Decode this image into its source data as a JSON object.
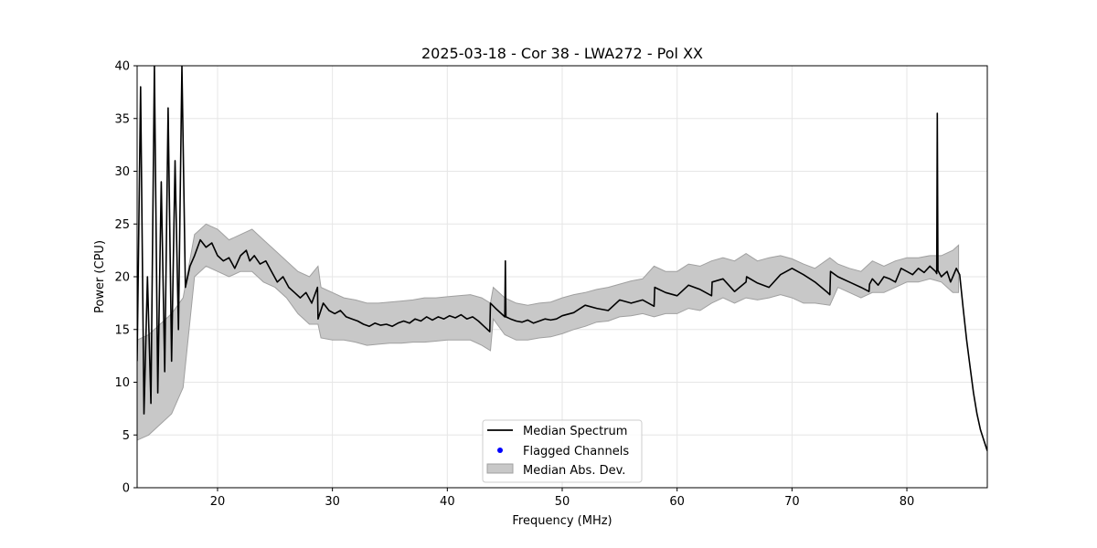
{
  "chart_data": {
    "type": "line",
    "title": "2025-03-18 - Cor 38 - LWA272 - Pol XX",
    "xlabel": "Frequency (MHz)",
    "ylabel": "Power (CPU)",
    "xlim": [
      13,
      87
    ],
    "ylim": [
      0,
      40
    ],
    "xticks": [
      20,
      30,
      40,
      50,
      60,
      70,
      80
    ],
    "yticks": [
      0,
      5,
      10,
      15,
      20,
      25,
      30,
      35,
      40
    ],
    "grid": true,
    "legend_position": "bottom-center",
    "legend": [
      "Median Spectrum",
      "Flagged Channels",
      "Median Abs. Dev."
    ],
    "colors": {
      "line": "#000000",
      "band": "#c8c8c8",
      "band_edge": "#a0a0a0",
      "flagged": "#0000ff",
      "grid": "#e6e6e6"
    },
    "series": [
      {
        "name": "Median Spectrum",
        "x": [
          13.0,
          13.3,
          13.6,
          13.9,
          14.2,
          14.5,
          14.8,
          15.1,
          15.4,
          15.7,
          16.0,
          16.3,
          16.6,
          16.9,
          17.2,
          17.6,
          18.0,
          18.5,
          19.0,
          19.5,
          20.0,
          20.5,
          21.0,
          21.5,
          22.0,
          22.5,
          22.8,
          23.2,
          23.7,
          24.2,
          24.7,
          25.2,
          25.7,
          26.2,
          26.7,
          27.2,
          27.7,
          28.2,
          28.7,
          28.75,
          29.2,
          29.7,
          30.2,
          30.7,
          31.2,
          31.7,
          32.2,
          32.7,
          33.2,
          33.7,
          34.2,
          34.7,
          35.2,
          35.7,
          36.2,
          36.7,
          37.2,
          37.7,
          38.2,
          38.7,
          39.2,
          39.7,
          40.2,
          40.7,
          41.2,
          41.7,
          42.2,
          42.7,
          43.2,
          43.7,
          43.75,
          44.2,
          44.7,
          45.0,
          45.05,
          45.1,
          45.5,
          46.0,
          46.5,
          47.0,
          47.5,
          48.0,
          48.5,
          49.0,
          49.5,
          50.0,
          51.0,
          52.0,
          53.0,
          54.0,
          55.0,
          56.0,
          57.0,
          58.0,
          58.05,
          59.0,
          60.0,
          61.0,
          62.0,
          63.0,
          63.05,
          64.0,
          65.0,
          66.0,
          66.05,
          67.0,
          68.0,
          69.0,
          70.0,
          71.0,
          72.0,
          73.0,
          73.3,
          73.35,
          74.0,
          75.0,
          76.0,
          76.7,
          76.75,
          77.0,
          77.5,
          78.0,
          78.5,
          79.0,
          79.5,
          80.0,
          80.5,
          81.0,
          81.5,
          82.0,
          82.5,
          82.6,
          82.65,
          82.7,
          83.0,
          83.5,
          83.8,
          84.0,
          84.3,
          84.6,
          84.9,
          85.2,
          85.5,
          85.8,
          86.1,
          86.4,
          86.7,
          87.0
        ],
        "y": [
          12.0,
          38.0,
          7.0,
          20.0,
          8.0,
          40.0,
          9.0,
          29.0,
          11.0,
          36.0,
          12.0,
          31.0,
          15.0,
          40.0,
          19.0,
          21.0,
          22.0,
          23.5,
          22.8,
          23.2,
          22.0,
          21.5,
          21.8,
          20.8,
          22.0,
          22.5,
          21.5,
          22.0,
          21.2,
          21.5,
          20.5,
          19.5,
          20.0,
          19.0,
          18.5,
          18.0,
          18.5,
          17.5,
          19.0,
          16.0,
          17.5,
          16.8,
          16.5,
          16.8,
          16.2,
          16.0,
          15.8,
          15.5,
          15.3,
          15.6,
          15.4,
          15.5,
          15.3,
          15.6,
          15.8,
          15.6,
          16.0,
          15.8,
          16.2,
          15.9,
          16.2,
          16.0,
          16.3,
          16.1,
          16.4,
          16.0,
          16.2,
          15.8,
          15.3,
          14.8,
          17.5,
          17.0,
          16.5,
          16.2,
          21.5,
          16.2,
          16.0,
          15.8,
          15.7,
          15.9,
          15.6,
          15.8,
          16.0,
          15.9,
          16.0,
          16.3,
          16.6,
          17.3,
          17.0,
          16.8,
          17.8,
          17.5,
          17.8,
          17.2,
          19.0,
          18.5,
          18.2,
          19.2,
          18.8,
          18.2,
          19.5,
          19.8,
          18.6,
          19.5,
          20.0,
          19.4,
          19.0,
          20.2,
          20.8,
          20.2,
          19.5,
          18.6,
          18.3,
          20.5,
          20.0,
          19.5,
          19.0,
          18.6,
          19.3,
          19.8,
          19.2,
          20.0,
          19.8,
          19.5,
          20.8,
          20.5,
          20.2,
          20.8,
          20.4,
          21.0,
          20.5,
          20.3,
          35.5,
          20.6,
          20.0,
          20.5,
          19.5,
          20.0,
          20.8,
          20.2,
          17.0,
          14.0,
          11.5,
          9.0,
          7.0,
          5.5,
          4.5,
          3.5
        ]
      },
      {
        "name": "Median Abs. Dev.",
        "x": [
          13.0,
          14.0,
          15.0,
          16.0,
          17.0,
          18.0,
          19.0,
          20.0,
          21.0,
          22.0,
          23.0,
          24.0,
          25.0,
          26.0,
          27.0,
          28.0,
          28.75,
          29.0,
          30.0,
          31.0,
          32.0,
          33.0,
          34.0,
          35.0,
          36.0,
          37.0,
          38.0,
          39.0,
          40.0,
          41.0,
          42.0,
          43.0,
          43.75,
          44.0,
          45.0,
          46.0,
          47.0,
          48.0,
          49.0,
          50.0,
          51.0,
          52.0,
          53.0,
          54.0,
          55.0,
          56.0,
          57.0,
          58.0,
          59.0,
          60.0,
          61.0,
          62.0,
          63.0,
          64.0,
          65.0,
          66.0,
          67.0,
          68.0,
          69.0,
          70.0,
          71.0,
          72.0,
          73.3,
          74.0,
          75.0,
          76.0,
          77.0,
          78.0,
          79.0,
          80.0,
          81.0,
          82.0,
          83.0,
          84.0,
          84.5
        ],
        "upper": [
          14.0,
          14.5,
          15.5,
          16.5,
          18.0,
          24.0,
          25.0,
          24.5,
          23.5,
          24.0,
          24.5,
          23.5,
          22.5,
          21.5,
          20.5,
          20.0,
          21.0,
          19.0,
          18.5,
          18.0,
          17.8,
          17.5,
          17.5,
          17.6,
          17.7,
          17.8,
          18.0,
          18.0,
          18.1,
          18.2,
          18.3,
          18.0,
          17.5,
          19.0,
          18.0,
          17.5,
          17.3,
          17.5,
          17.6,
          18.0,
          18.3,
          18.5,
          18.8,
          19.0,
          19.3,
          19.6,
          19.8,
          21.0,
          20.5,
          20.5,
          21.2,
          21.0,
          21.5,
          21.8,
          21.5,
          22.2,
          21.5,
          21.8,
          22.0,
          21.7,
          21.2,
          20.8,
          21.8,
          21.2,
          20.8,
          20.5,
          21.5,
          21.0,
          21.5,
          21.8,
          21.8,
          22.0,
          22.0,
          22.5,
          23.0
        ],
        "lower": [
          4.5,
          5.0,
          6.0,
          7.0,
          9.5,
          20.0,
          21.0,
          20.5,
          20.0,
          20.5,
          20.5,
          19.5,
          19.0,
          18.0,
          16.5,
          15.5,
          15.5,
          14.2,
          14.0,
          14.0,
          13.8,
          13.5,
          13.6,
          13.7,
          13.7,
          13.8,
          13.8,
          13.9,
          14.0,
          14.0,
          14.0,
          13.5,
          13.0,
          16.0,
          14.5,
          14.0,
          14.0,
          14.2,
          14.3,
          14.6,
          15.0,
          15.3,
          15.7,
          15.8,
          16.2,
          16.3,
          16.5,
          16.2,
          16.5,
          16.5,
          17.0,
          16.8,
          17.5,
          18.0,
          17.5,
          18.0,
          17.8,
          18.0,
          18.3,
          18.0,
          17.5,
          17.5,
          17.3,
          19.0,
          18.5,
          18.0,
          18.5,
          18.5,
          19.0,
          19.5,
          19.5,
          19.8,
          19.5,
          18.5,
          18.5
        ]
      }
    ],
    "flagged_channels": []
  }
}
